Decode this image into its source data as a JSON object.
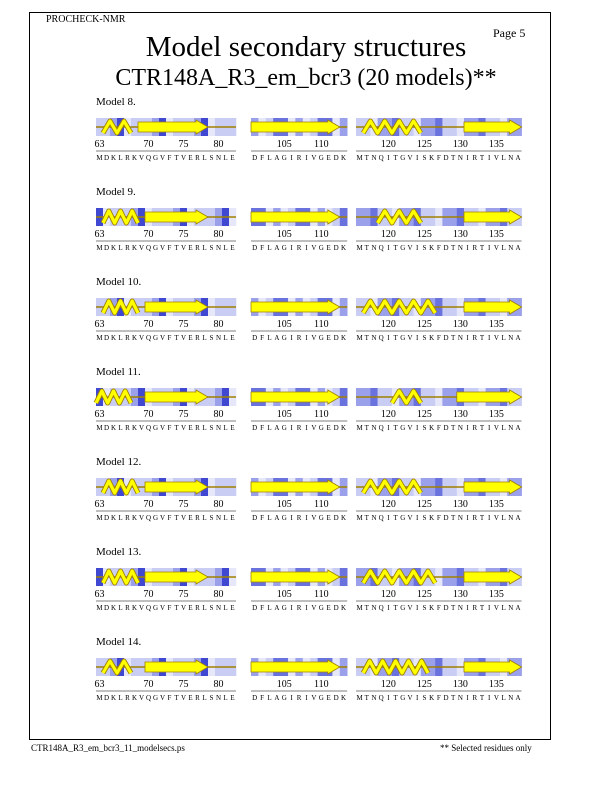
{
  "header": {
    "program": "PROCHECK-NMR",
    "page": "Page  5",
    "title": "Model secondary structures",
    "subtitle": "CTR148A_R3_em_bcr3 (20 models)**"
  },
  "footer": {
    "filename": "CTR148A_R3_em_bcr3_11_modelsecs.ps",
    "note": "** Selected residues only"
  },
  "colors": {
    "bg_light": "#e6e8fa",
    "bg_mid": "#9aa0ea",
    "bg_dark": "#2c30c8",
    "element_fill": "#ffff00",
    "element_stroke": "#a08000"
  },
  "segments": [
    {
      "name": "segment-1",
      "sequence": "MDKLRKVQGVFTVERLSNLE",
      "ticks": [
        "63",
        "70",
        "75",
        "80"
      ]
    },
    {
      "name": "segment-2",
      "sequence": "DFLAGIRIVGEDK",
      "ticks": [
        "105",
        "110"
      ]
    },
    {
      "name": "segment-3",
      "sequence": "MTNQITGVISKFDTNIRTIVLNA",
      "ticks": [
        "120",
        "125",
        "130",
        "135"
      ]
    }
  ],
  "models": [
    {
      "label": "Model  8.",
      "segments": [
        [
          {
            "type": "strand",
            "start": 6,
            "end": 15
          },
          {
            "type": "helix",
            "start": 1,
            "end": 4
          }
        ],
        [
          {
            "type": "strand",
            "start": 0,
            "end": 11
          }
        ],
        [
          {
            "type": "helix",
            "start": 1,
            "end": 8
          },
          {
            "type": "strand",
            "start": 15,
            "end": 22
          }
        ]
      ]
    },
    {
      "label": "Model  9.",
      "segments": [
        [
          {
            "type": "helix",
            "start": 1,
            "end": 5
          },
          {
            "type": "strand",
            "start": 7,
            "end": 15
          }
        ],
        [
          {
            "type": "strand",
            "start": 0,
            "end": 11
          }
        ],
        [
          {
            "type": "helix",
            "start": 3,
            "end": 8
          },
          {
            "type": "strand",
            "start": 15,
            "end": 22
          }
        ]
      ]
    },
    {
      "label": "Model 10.",
      "segments": [
        [
          {
            "type": "helix",
            "start": 1,
            "end": 5
          },
          {
            "type": "strand",
            "start": 7,
            "end": 15
          }
        ],
        [
          {
            "type": "strand",
            "start": 0,
            "end": 11
          }
        ],
        [
          {
            "type": "helix",
            "start": 1,
            "end": 10
          },
          {
            "type": "strand",
            "start": 15,
            "end": 22
          }
        ]
      ]
    },
    {
      "label": "Model 11.",
      "segments": [
        [
          {
            "type": "helix",
            "start": 0,
            "end": 4
          },
          {
            "type": "strand",
            "start": 7,
            "end": 15
          }
        ],
        [
          {
            "type": "strand",
            "start": 0,
            "end": 11
          }
        ],
        [
          {
            "type": "helix",
            "start": 5,
            "end": 8
          },
          {
            "type": "strand",
            "start": 14,
            "end": 22
          }
        ]
      ]
    },
    {
      "label": "Model 12.",
      "segments": [
        [
          {
            "type": "helix",
            "start": 1,
            "end": 5
          },
          {
            "type": "strand",
            "start": 7,
            "end": 15
          }
        ],
        [
          {
            "type": "strand",
            "start": 0,
            "end": 11
          }
        ],
        [
          {
            "type": "helix",
            "start": 1,
            "end": 8
          },
          {
            "type": "strand",
            "start": 15,
            "end": 22
          }
        ]
      ]
    },
    {
      "label": "Model 13.",
      "segments": [
        [
          {
            "type": "helix",
            "start": 1,
            "end": 5
          },
          {
            "type": "strand",
            "start": 7,
            "end": 15
          }
        ],
        [
          {
            "type": "strand",
            "start": 0,
            "end": 11
          }
        ],
        [
          {
            "type": "helix",
            "start": 1,
            "end": 10
          },
          {
            "type": "strand",
            "start": 15,
            "end": 22
          }
        ]
      ]
    },
    {
      "label": "Model 14.",
      "segments": [
        [
          {
            "type": "helix",
            "start": 1,
            "end": 4
          },
          {
            "type": "strand",
            "start": 7,
            "end": 15
          }
        ],
        [
          {
            "type": "strand",
            "start": 0,
            "end": 11
          }
        ],
        [
          {
            "type": "helix",
            "start": 1,
            "end": 9
          },
          {
            "type": "strand",
            "start": 15,
            "end": 22
          }
        ]
      ]
    }
  ]
}
